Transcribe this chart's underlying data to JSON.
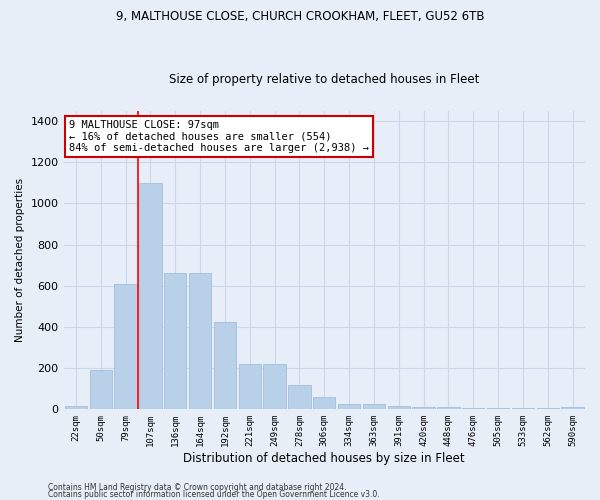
{
  "title1": "9, MALTHOUSE CLOSE, CHURCH CROOKHAM, FLEET, GU52 6TB",
  "title2": "Size of property relative to detached houses in Fleet",
  "xlabel": "Distribution of detached houses by size in Fleet",
  "ylabel": "Number of detached properties",
  "categories": [
    "22sqm",
    "50sqm",
    "79sqm",
    "107sqm",
    "136sqm",
    "164sqm",
    "192sqm",
    "221sqm",
    "249sqm",
    "278sqm",
    "306sqm",
    "334sqm",
    "363sqm",
    "391sqm",
    "420sqm",
    "448sqm",
    "476sqm",
    "505sqm",
    "533sqm",
    "562sqm",
    "590sqm"
  ],
  "values": [
    15,
    190,
    610,
    1100,
    660,
    660,
    425,
    220,
    220,
    120,
    60,
    25,
    25,
    15,
    10,
    10,
    5,
    5,
    5,
    5,
    10
  ],
  "bar_color": "#b8d0e8",
  "bar_edge_color": "#9ab8d8",
  "grid_color": "#ccd8e8",
  "background_color": "#e8eef8",
  "red_line_index": 2.5,
  "annotation_text": "9 MALTHOUSE CLOSE: 97sqm\n← 16% of detached houses are smaller (554)\n84% of semi-detached houses are larger (2,938) →",
  "annotation_box_color": "#ffffff",
  "annotation_box_edge": "#cc0000",
  "footer1": "Contains HM Land Registry data © Crown copyright and database right 2024.",
  "footer2": "Contains public sector information licensed under the Open Government Licence v3.0.",
  "ylim": [
    0,
    1450
  ],
  "yticks": [
    0,
    200,
    400,
    600,
    800,
    1000,
    1200,
    1400
  ]
}
